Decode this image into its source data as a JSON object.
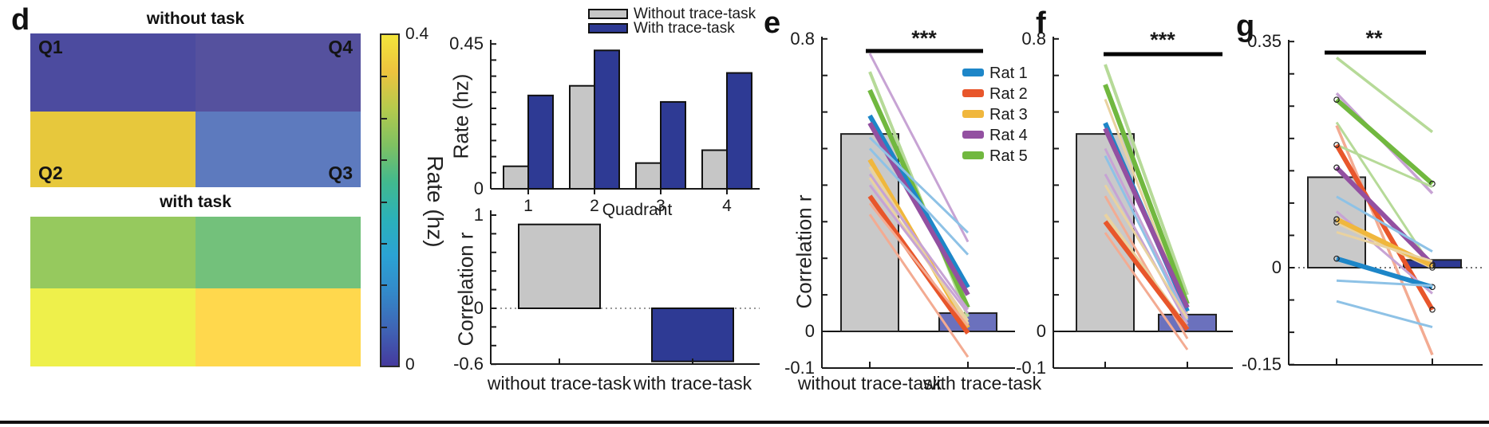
{
  "panels": {
    "d": {
      "letter": "d"
    },
    "e": {
      "letter": "e"
    },
    "f": {
      "letter": "f"
    },
    "g": {
      "letter": "g"
    }
  },
  "panel_d": {
    "heatmap_without": {
      "title": "without task",
      "cells": [
        {
          "label": "Q1",
          "color": "#4c4b9f",
          "corner": "tl"
        },
        {
          "label": "Q4",
          "color": "#55519e",
          "corner": "tr"
        },
        {
          "label": "Q2",
          "color": "#e7c83c",
          "corner": "bl"
        },
        {
          "label": "Q3",
          "color": "#5d7abe",
          "corner": "br"
        }
      ]
    },
    "heatmap_with": {
      "title": "with task",
      "cells": [
        {
          "label": "",
          "color": "#96c95e",
          "corner": "tl"
        },
        {
          "label": "",
          "color": "#73c17b",
          "corner": "tr"
        },
        {
          "label": "",
          "color": "#eef04b",
          "corner": "bl"
        },
        {
          "label": "",
          "color": "#ffd84d",
          "corner": "br"
        }
      ]
    },
    "colorbar": {
      "label": "Rate (hz)",
      "max_label": "0.4",
      "min_label": "0",
      "gradient_top_to_bottom": [
        "#f3e53b",
        "#eec33e",
        "#b5ca4d",
        "#7fc162",
        "#42b98e",
        "#2bb1b9",
        "#2ba3d4",
        "#3389c9",
        "#3f64b5",
        "#453a9e"
      ]
    }
  },
  "rat_colors": {
    "r1": "#1d86c8",
    "r1l": "#8ec2e6",
    "r2": "#e8562b",
    "r2l": "#f3ab92",
    "r3": "#f0b73d",
    "r3l": "#e9d2a0",
    "r4": "#9350a1",
    "r4l": "#c7a3d4",
    "r5": "#71b83f",
    "r5l": "#b6da98"
  },
  "chart_data": [
    {
      "id": "rate_by_quadrant",
      "type": "bar",
      "categories": [
        "1",
        "2",
        "3",
        "4"
      ],
      "series": [
        {
          "name": "Without trace-task",
          "color": "#c6c6c6",
          "values": [
            0.07,
            0.32,
            0.08,
            0.12
          ]
        },
        {
          "name": "With trace-task",
          "color": "#2e3a94",
          "values": [
            0.29,
            0.43,
            0.27,
            0.36
          ]
        }
      ],
      "xlabel": "Quadrant",
      "ylabel": "Rate (hz)",
      "ylim": [
        0,
        0.45
      ],
      "ytick_step": 0.05,
      "ytick_labels": [
        {
          "text": "0.45",
          "value": 0.45
        },
        {
          "text": "0",
          "value": 0
        }
      ],
      "legend_position": "top-right"
    },
    {
      "id": "correlation_by_task",
      "type": "bar",
      "categories": [
        "without trace-task",
        "with trace-task"
      ],
      "values": [
        0.9,
        -0.57
      ],
      "bar_colors": [
        "#c6c6c6",
        "#2e3a94"
      ],
      "ylabel": "Correlation r",
      "ylim": [
        -0.6,
        1
      ],
      "ytick_step": 0.2,
      "ytick_labels": [
        {
          "text": "1",
          "value": 1
        },
        {
          "text": "0",
          "value": 0
        },
        {
          "text": "-0.6",
          "value": -0.6
        }
      ],
      "zero_line": "dotted"
    },
    {
      "id": "panel_e",
      "type": "paired-bar-lines",
      "categories": [
        "without trace-task",
        "with trace-task"
      ],
      "bar_values": [
        0.54,
        0.05
      ],
      "bar_colors": [
        "#c9c9c9",
        "#6b71bd"
      ],
      "ylabel": "Correlation r",
      "ylim": [
        -0.1,
        0.8
      ],
      "ytick_step": 0.1,
      "ytick_labels": [
        {
          "text": "0.8",
          "value": 0.8
        },
        {
          "text": "0",
          "value": 0
        },
        {
          "text": "-0.1",
          "value": -0.1
        }
      ],
      "significance": "***",
      "show_x_labels": true,
      "legend": [
        {
          "label": "Rat 1",
          "color_key": "r1"
        },
        {
          "label": "Rat 2",
          "color_key": "r2"
        },
        {
          "label": "Rat 3",
          "color_key": "r3"
        },
        {
          "label": "Rat 4",
          "color_key": "r4"
        },
        {
          "label": "Rat 5",
          "color_key": "r5"
        }
      ],
      "lines": [
        {
          "color_key": "r4l",
          "width": 3,
          "values": [
            0.76,
            0.245
          ]
        },
        {
          "color_key": "r5l",
          "width": 4,
          "values": [
            0.71,
            0.04
          ]
        },
        {
          "color_key": "r5",
          "width": 6,
          "values": [
            0.66,
            0.065
          ]
        },
        {
          "color_key": "r1",
          "width": 6,
          "values": [
            0.59,
            0.12
          ]
        },
        {
          "color_key": "r4",
          "width": 6,
          "values": [
            0.57,
            0.1
          ]
        },
        {
          "color_key": "r1l",
          "width": 3,
          "values": [
            0.53,
            0.27
          ]
        },
        {
          "color_key": "r1l",
          "width": 3,
          "values": [
            0.5,
            0.21
          ]
        },
        {
          "color_key": "r3",
          "width": 6,
          "values": [
            0.47,
            0.01
          ]
        },
        {
          "color_key": "r3l",
          "width": 4,
          "values": [
            0.45,
            0.02
          ]
        },
        {
          "color_key": "r4l",
          "width": 3,
          "values": [
            0.43,
            0.06
          ]
        },
        {
          "color_key": "r3l",
          "width": 3,
          "values": [
            0.42,
            0.03
          ]
        },
        {
          "color_key": "r4l",
          "width": 3,
          "values": [
            0.4,
            0.05
          ]
        },
        {
          "color_key": "r2",
          "width": 6,
          "values": [
            0.37,
            -0.005
          ]
        },
        {
          "color_key": "r2l",
          "width": 3,
          "values": [
            0.35,
            0.015
          ]
        },
        {
          "color_key": "r2l",
          "width": 3,
          "values": [
            0.32,
            -0.07
          ]
        }
      ]
    },
    {
      "id": "panel_f",
      "type": "paired-bar-lines",
      "categories": [
        "without trace-task",
        "with trace-task"
      ],
      "bar_values": [
        0.54,
        0.046
      ],
      "bar_colors": [
        "#c9c9c9",
        "#6b71bd"
      ],
      "ylabel": "",
      "ylim": [
        -0.1,
        0.8
      ],
      "ytick_step": 0.1,
      "ytick_labels": [
        {
          "text": "0.8",
          "value": 0.8
        },
        {
          "text": "0",
          "value": 0
        },
        {
          "text": "-0.1",
          "value": -0.1
        }
      ],
      "significance": "***",
      "show_x_labels": false,
      "lines": [
        {
          "color_key": "r5l",
          "width": 4,
          "values": [
            0.73,
            0.1
          ]
        },
        {
          "color_key": "r5",
          "width": 6,
          "values": [
            0.675,
            0.075
          ]
        },
        {
          "color_key": "r3l",
          "width": 3,
          "values": [
            0.635,
            0.05
          ]
        },
        {
          "color_key": "r1",
          "width": 6,
          "values": [
            0.57,
            0.055
          ]
        },
        {
          "color_key": "r4",
          "width": 6,
          "values": [
            0.555,
            0.065
          ]
        },
        {
          "color_key": "r4l",
          "width": 3,
          "values": [
            0.5,
            0.04
          ]
        },
        {
          "color_key": "r1l",
          "width": 3,
          "values": [
            0.48,
            0.03
          ]
        },
        {
          "color_key": "r4l",
          "width": 3,
          "values": [
            0.43,
            0.02
          ]
        },
        {
          "color_key": "r3l",
          "width": 3,
          "values": [
            0.4,
            0.035
          ]
        },
        {
          "color_key": "r2l",
          "width": 3,
          "values": [
            0.37,
            -0.02
          ]
        },
        {
          "color_key": "r3l",
          "width": 4,
          "values": [
            0.32,
            0.01
          ]
        },
        {
          "color_key": "r2",
          "width": 6,
          "values": [
            0.3,
            0.005
          ]
        },
        {
          "color_key": "r2l",
          "width": 3,
          "values": [
            0.27,
            -0.05
          ]
        }
      ]
    },
    {
      "id": "panel_g",
      "type": "paired-bar-lines",
      "categories": [
        "without trace-task",
        "with trace-task"
      ],
      "bar_values": [
        0.14,
        0.012
      ],
      "bar_colors": [
        "#c9c9c9",
        "#2e3a94"
      ],
      "ylabel": "",
      "ylim": [
        -0.15,
        0.35
      ],
      "ytick_step": 0.05,
      "ytick_labels": [
        {
          "text": "0.35",
          "value": 0.35
        },
        {
          "text": "0",
          "value": 0
        },
        {
          "text": "-0.15",
          "value": -0.15
        }
      ],
      "significance": "**",
      "show_x_labels": false,
      "zero_line": "dotted",
      "lines": [
        {
          "color_key": "r5l",
          "width": 3.5,
          "values": [
            0.325,
            0.21
          ]
        },
        {
          "color_key": "r4l",
          "width": 3.5,
          "values": [
            0.27,
            0.115
          ]
        },
        {
          "color_key": "r5",
          "width": 6,
          "values": [
            0.26,
            0.13
          ],
          "markers": true
        },
        {
          "color_key": "r5l",
          "width": 3,
          "values": [
            0.225,
            0.0
          ]
        },
        {
          "color_key": "r2l",
          "width": 3.5,
          "values": [
            0.22,
            -0.135
          ]
        },
        {
          "color_key": "r5l",
          "width": 3,
          "values": [
            0.19,
            0.125
          ]
        },
        {
          "color_key": "r2",
          "width": 6,
          "values": [
            0.19,
            -0.065
          ],
          "markers": true
        },
        {
          "color_key": "r4",
          "width": 6,
          "values": [
            0.155,
            0.005
          ],
          "markers": true
        },
        {
          "color_key": "r1l",
          "width": 3,
          "values": [
            0.11,
            0.025
          ]
        },
        {
          "color_key": "r4l",
          "width": 3,
          "values": [
            0.087,
            -0.04
          ]
        },
        {
          "color_key": "r3l",
          "width": 4,
          "values": [
            0.07,
            0.0
          ],
          "markers": true
        },
        {
          "color_key": "r3",
          "width": 6,
          "values": [
            0.075,
            0.003
          ],
          "markers": true
        },
        {
          "color_key": "r3l",
          "width": 3,
          "values": [
            0.055,
            0.01
          ]
        },
        {
          "color_key": "r1",
          "width": 6,
          "values": [
            0.014,
            -0.03
          ],
          "markers": true
        },
        {
          "color_key": "r1l",
          "width": 3,
          "values": [
            -0.02,
            -0.028
          ]
        },
        {
          "color_key": "r1l",
          "width": 3,
          "values": [
            -0.052,
            -0.092
          ]
        }
      ]
    }
  ]
}
